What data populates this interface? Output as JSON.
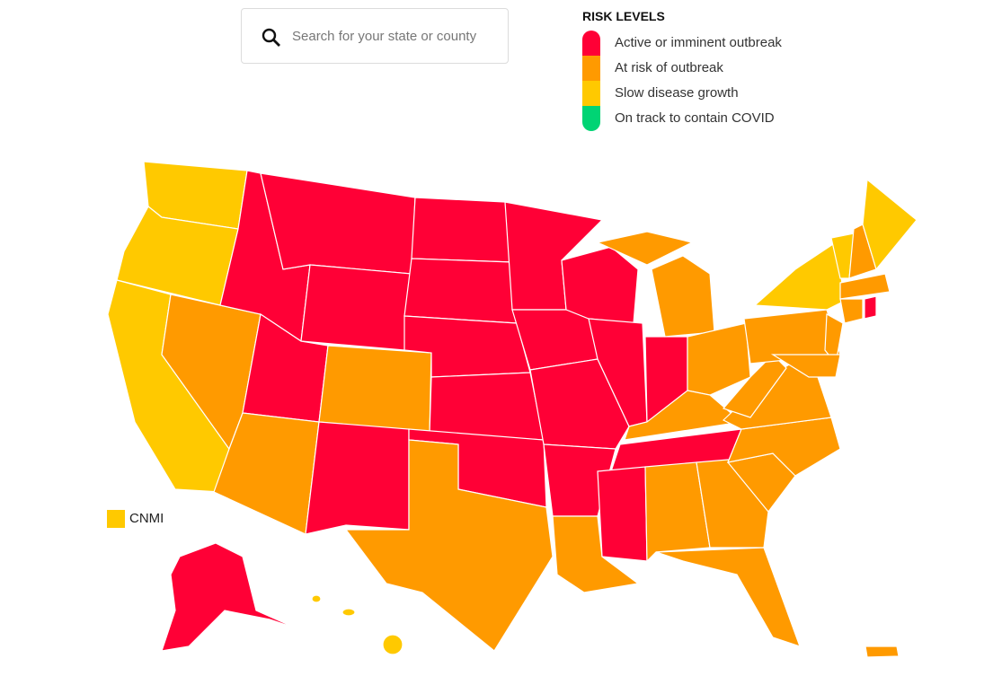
{
  "search": {
    "placeholder": "Search for your state or county"
  },
  "legend": {
    "title": "RISK LEVELS",
    "items": [
      {
        "label": "Active or imminent outbreak",
        "color": "#ff0036"
      },
      {
        "label": "At risk of outbreak",
        "color": "#ff9a00"
      },
      {
        "label": "Slow disease growth",
        "color": "#ffc900"
      },
      {
        "label": "On track to contain COVID",
        "color": "#00d474"
      }
    ]
  },
  "territories": [
    {
      "label": "CNMI",
      "color": "#ffc900"
    }
  ]
}
